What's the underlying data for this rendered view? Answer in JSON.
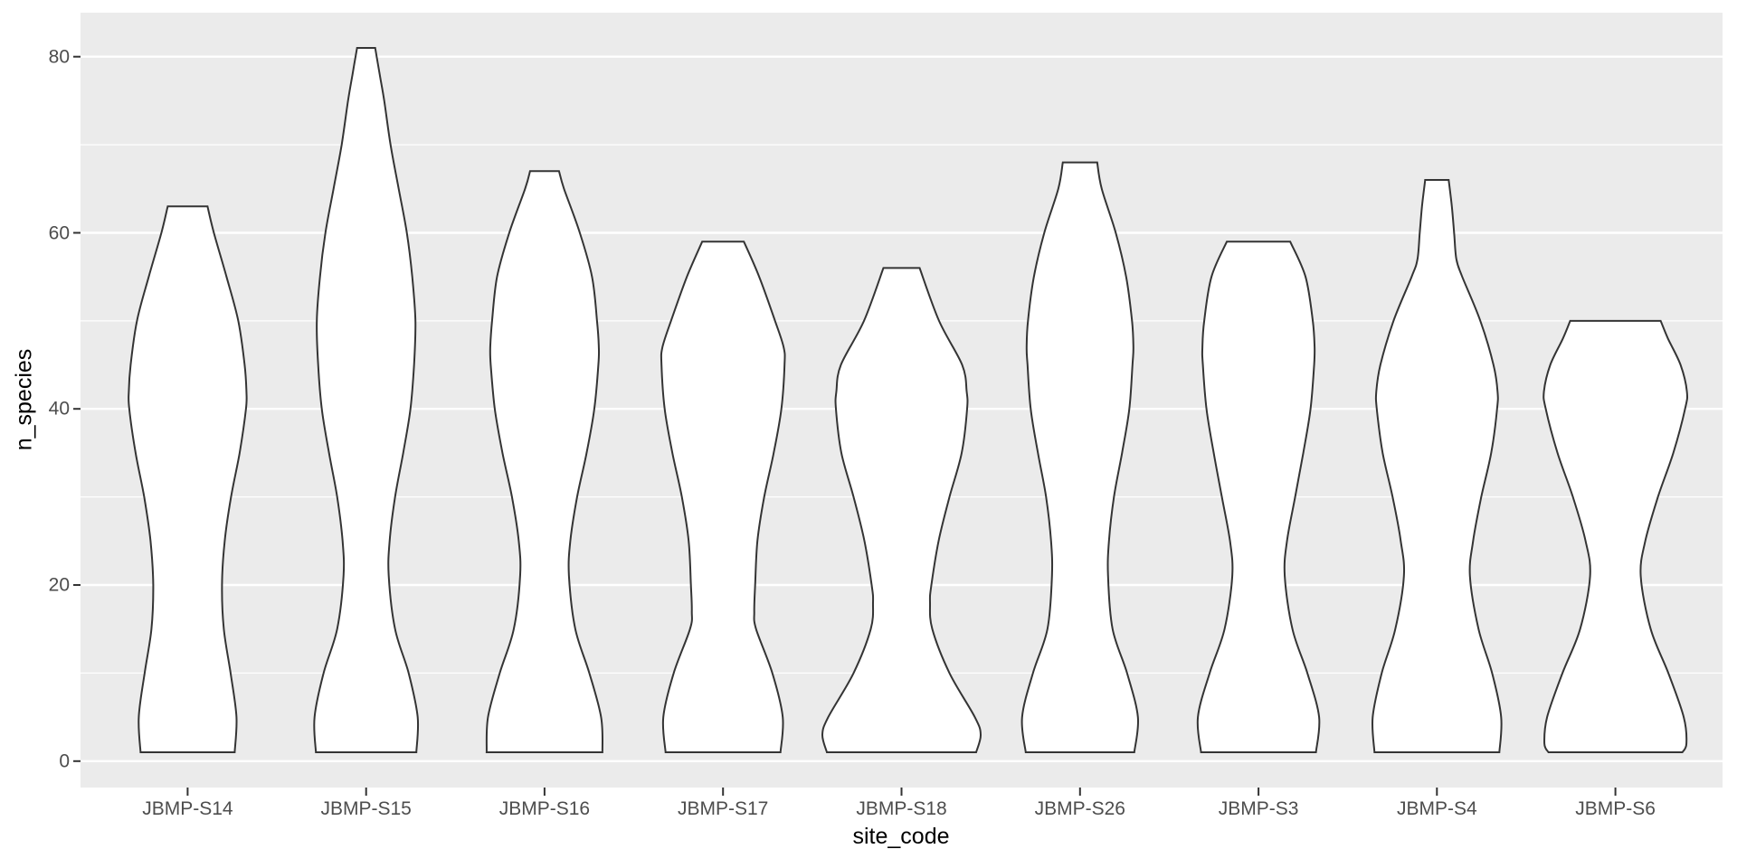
{
  "chart_data": {
    "type": "violin",
    "title": "",
    "xlabel": "site_code",
    "ylabel": "n_species",
    "categories": [
      "JBMP-S14",
      "JBMP-S15",
      "JBMP-S16",
      "JBMP-S17",
      "JBMP-S18",
      "JBMP-S26",
      "JBMP-S3",
      "JBMP-S4",
      "JBMP-S6"
    ],
    "y_major_ticks": [
      0,
      20,
      40,
      60,
      80
    ],
    "y_minor_gridlines": [
      10,
      30,
      50,
      70
    ],
    "y_panel_range": [
      -3,
      85
    ],
    "grid": "on",
    "legend": "none",
    "violins": [
      {
        "site": "JBMP-S14",
        "min": 1,
        "max": 63,
        "profile": [
          [
            63,
            22
          ],
          [
            60,
            29
          ],
          [
            55,
            43
          ],
          [
            50,
            56
          ],
          [
            45,
            63
          ],
          [
            42,
            65
          ],
          [
            40,
            64.5
          ],
          [
            35,
            57.5
          ],
          [
            30,
            48
          ],
          [
            25,
            41
          ],
          [
            20,
            38
          ],
          [
            15,
            40
          ],
          [
            10,
            47.5
          ],
          [
            5,
            54
          ],
          [
            1,
            52
          ]
        ]
      },
      {
        "site": "JBMP-S15",
        "min": 1,
        "max": 81,
        "profile": [
          [
            81,
            10
          ],
          [
            78,
            15
          ],
          [
            75,
            20
          ],
          [
            70,
            27
          ],
          [
            65,
            36
          ],
          [
            60,
            45
          ],
          [
            55,
            51
          ],
          [
            50,
            54.5
          ],
          [
            45,
            53
          ],
          [
            40,
            49
          ],
          [
            35,
            41
          ],
          [
            30,
            32
          ],
          [
            25,
            26
          ],
          [
            21,
            25
          ],
          [
            15,
            32
          ],
          [
            10,
            47
          ],
          [
            5,
            57
          ],
          [
            1,
            55.5
          ]
        ]
      },
      {
        "site": "JBMP-S16",
        "min": 1,
        "max": 67,
        "profile": [
          [
            67,
            16
          ],
          [
            65,
            21.5
          ],
          [
            60,
            39
          ],
          [
            55,
            52.5
          ],
          [
            50,
            58
          ],
          [
            47,
            60
          ],
          [
            45,
            59.5
          ],
          [
            40,
            55
          ],
          [
            35,
            46.5
          ],
          [
            30,
            36
          ],
          [
            25,
            28.5
          ],
          [
            21,
            27
          ],
          [
            15,
            34
          ],
          [
            10,
            49.5
          ],
          [
            5,
            62.5
          ],
          [
            1,
            64
          ]
        ]
      },
      {
        "site": "JBMP-S17",
        "min": 1,
        "max": 59,
        "profile": [
          [
            59,
            23
          ],
          [
            55,
            40
          ],
          [
            50,
            57.5
          ],
          [
            47,
            67
          ],
          [
            45,
            68
          ],
          [
            40,
            64.5
          ],
          [
            35,
            56
          ],
          [
            30,
            45.5
          ],
          [
            25,
            38
          ],
          [
            20,
            35.5
          ],
          [
            17,
            34.5
          ],
          [
            15,
            36.5
          ],
          [
            10,
            54.5
          ],
          [
            5,
            66
          ],
          [
            1,
            63.5
          ]
        ]
      },
      {
        "site": "JBMP-S18",
        "min": 1,
        "max": 56,
        "profile": [
          [
            56,
            20
          ],
          [
            50,
            41.5
          ],
          [
            45,
            67
          ],
          [
            42,
            72
          ],
          [
            40,
            72.5
          ],
          [
            35,
            66.5
          ],
          [
            30,
            53
          ],
          [
            25,
            41
          ],
          [
            20,
            33
          ],
          [
            18,
            31.5
          ],
          [
            15,
            34
          ],
          [
            10,
            53
          ],
          [
            5,
            81
          ],
          [
            3,
            87.5
          ],
          [
            1,
            82.5
          ]
        ]
      },
      {
        "site": "JBMP-S26",
        "min": 1,
        "max": 68,
        "profile": [
          [
            68,
            19
          ],
          [
            65,
            24
          ],
          [
            60,
            39.5
          ],
          [
            55,
            51
          ],
          [
            50,
            57.5
          ],
          [
            47,
            59
          ],
          [
            45,
            58
          ],
          [
            40,
            54.5
          ],
          [
            35,
            46.5
          ],
          [
            30,
            37.5
          ],
          [
            25,
            32
          ],
          [
            21,
            31
          ],
          [
            15,
            36
          ],
          [
            10,
            52
          ],
          [
            5,
            64
          ],
          [
            1,
            60
          ]
        ]
      },
      {
        "site": "JBMP-S3",
        "min": 1,
        "max": 59,
        "profile": [
          [
            59,
            35
          ],
          [
            55,
            52
          ],
          [
            50,
            60
          ],
          [
            47,
            62
          ],
          [
            45,
            61.5
          ],
          [
            40,
            57.5
          ],
          [
            35,
            49.5
          ],
          [
            30,
            40.5
          ],
          [
            25,
            31.5
          ],
          [
            21,
            29
          ],
          [
            15,
            37.5
          ],
          [
            10,
            54
          ],
          [
            5,
            67
          ],
          [
            1,
            63.5
          ]
        ]
      },
      {
        "site": "JBMP-S4",
        "min": 1,
        "max": 66,
        "profile": [
          [
            66,
            13
          ],
          [
            63,
            16.5
          ],
          [
            60,
            19
          ],
          [
            57,
            21.5
          ],
          [
            55,
            28
          ],
          [
            50,
            48
          ],
          [
            45,
            62.5
          ],
          [
            42,
            67
          ],
          [
            40,
            66.5
          ],
          [
            35,
            60
          ],
          [
            30,
            49
          ],
          [
            25,
            40
          ],
          [
            21,
            36.5
          ],
          [
            15,
            46
          ],
          [
            10,
            61
          ],
          [
            5,
            71
          ],
          [
            1,
            69
          ]
        ]
      },
      {
        "site": "JBMP-S6",
        "min": 1,
        "max": 50,
        "profile": [
          [
            50,
            50
          ],
          [
            48,
            58
          ],
          [
            45,
            72
          ],
          [
            42,
            79
          ],
          [
            40,
            77
          ],
          [
            35,
            64
          ],
          [
            30,
            47
          ],
          [
            25,
            33
          ],
          [
            21,
            28
          ],
          [
            15,
            39
          ],
          [
            10,
            58.5
          ],
          [
            5,
            75.5
          ],
          [
            2,
            78.5
          ],
          [
            1,
            74
          ]
        ]
      }
    ],
    "colors": {
      "panel_bg": "#EBEBEB",
      "gridline": "#FFFFFF",
      "violin_fill": "#FFFFFF",
      "violin_stroke": "#343434",
      "tick_mark": "#333333",
      "tick_label": "#4D4D4D",
      "axis_title": "#000000"
    }
  }
}
